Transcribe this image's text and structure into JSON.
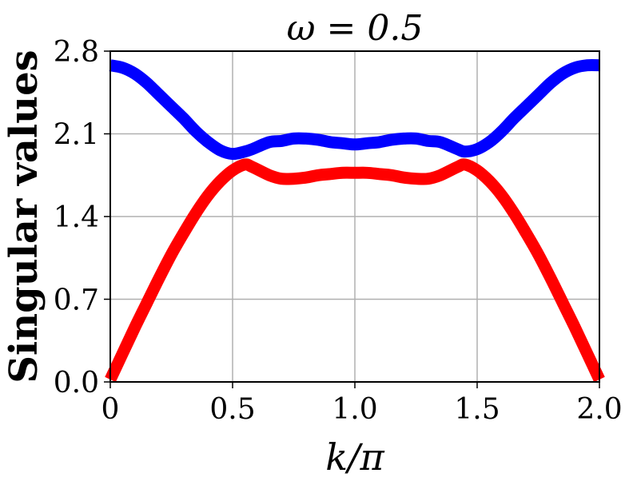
{
  "chart_data": {
    "type": "line",
    "title": "ω = 0.5",
    "xlabel": "k/π",
    "ylabel": "Singular values",
    "xlim": [
      0,
      2
    ],
    "ylim": [
      0,
      2.8
    ],
    "x_ticks": [
      "0",
      "0.5",
      "1.0",
      "1.5",
      "2.0"
    ],
    "y_ticks": [
      "0.0",
      "0.7",
      "1.4",
      "2.1",
      "2.8"
    ],
    "grid": true,
    "colors": {
      "upper": "#0000ff",
      "lower": "#ff0000",
      "grid": "#b0b0b0"
    },
    "series": [
      {
        "color": "#0000ff",
        "x": [
          0,
          0.05,
          0.1,
          0.15,
          0.2,
          0.25,
          0.3,
          0.35,
          0.4,
          0.45,
          0.5,
          0.55,
          0.58,
          0.65,
          0.7,
          0.75,
          0.8,
          0.85,
          0.9,
          0.95,
          1.0,
          1.05,
          1.1,
          1.15,
          1.2,
          1.25,
          1.3,
          1.35,
          1.42,
          1.45,
          1.5,
          1.55,
          1.6,
          1.65,
          1.7,
          1.75,
          1.8,
          1.85,
          1.9,
          1.95,
          2.0
        ],
        "y": [
          2.68,
          2.66,
          2.61,
          2.53,
          2.43,
          2.33,
          2.23,
          2.12,
          2.03,
          1.96,
          1.93,
          1.95,
          1.97,
          2.03,
          2.04,
          2.06,
          2.06,
          2.05,
          2.03,
          2.02,
          2.01,
          2.02,
          2.03,
          2.05,
          2.06,
          2.06,
          2.04,
          2.03,
          1.97,
          1.95,
          1.97,
          2.03,
          2.12,
          2.23,
          2.33,
          2.43,
          2.53,
          2.61,
          2.66,
          2.68,
          2.68
        ]
      },
      {
        "color": "#ff0000",
        "x": [
          0,
          0.05,
          0.1,
          0.15,
          0.2,
          0.25,
          0.3,
          0.35,
          0.4,
          0.45,
          0.5,
          0.55,
          0.58,
          0.65,
          0.7,
          0.75,
          0.8,
          0.85,
          0.9,
          0.95,
          1.0,
          1.05,
          1.1,
          1.15,
          1.2,
          1.25,
          1.3,
          1.35,
          1.42,
          1.45,
          1.5,
          1.55,
          1.6,
          1.65,
          1.7,
          1.75,
          1.8,
          1.85,
          1.9,
          1.95,
          2.0
        ],
        "y": [
          0.02,
          0.24,
          0.46,
          0.67,
          0.88,
          1.08,
          1.26,
          1.43,
          1.58,
          1.7,
          1.79,
          1.84,
          1.82,
          1.75,
          1.72,
          1.72,
          1.73,
          1.75,
          1.76,
          1.77,
          1.77,
          1.77,
          1.76,
          1.75,
          1.73,
          1.72,
          1.72,
          1.75,
          1.82,
          1.84,
          1.79,
          1.7,
          1.58,
          1.43,
          1.26,
          1.08,
          0.88,
          0.67,
          0.46,
          0.24,
          0.02
        ]
      }
    ]
  }
}
